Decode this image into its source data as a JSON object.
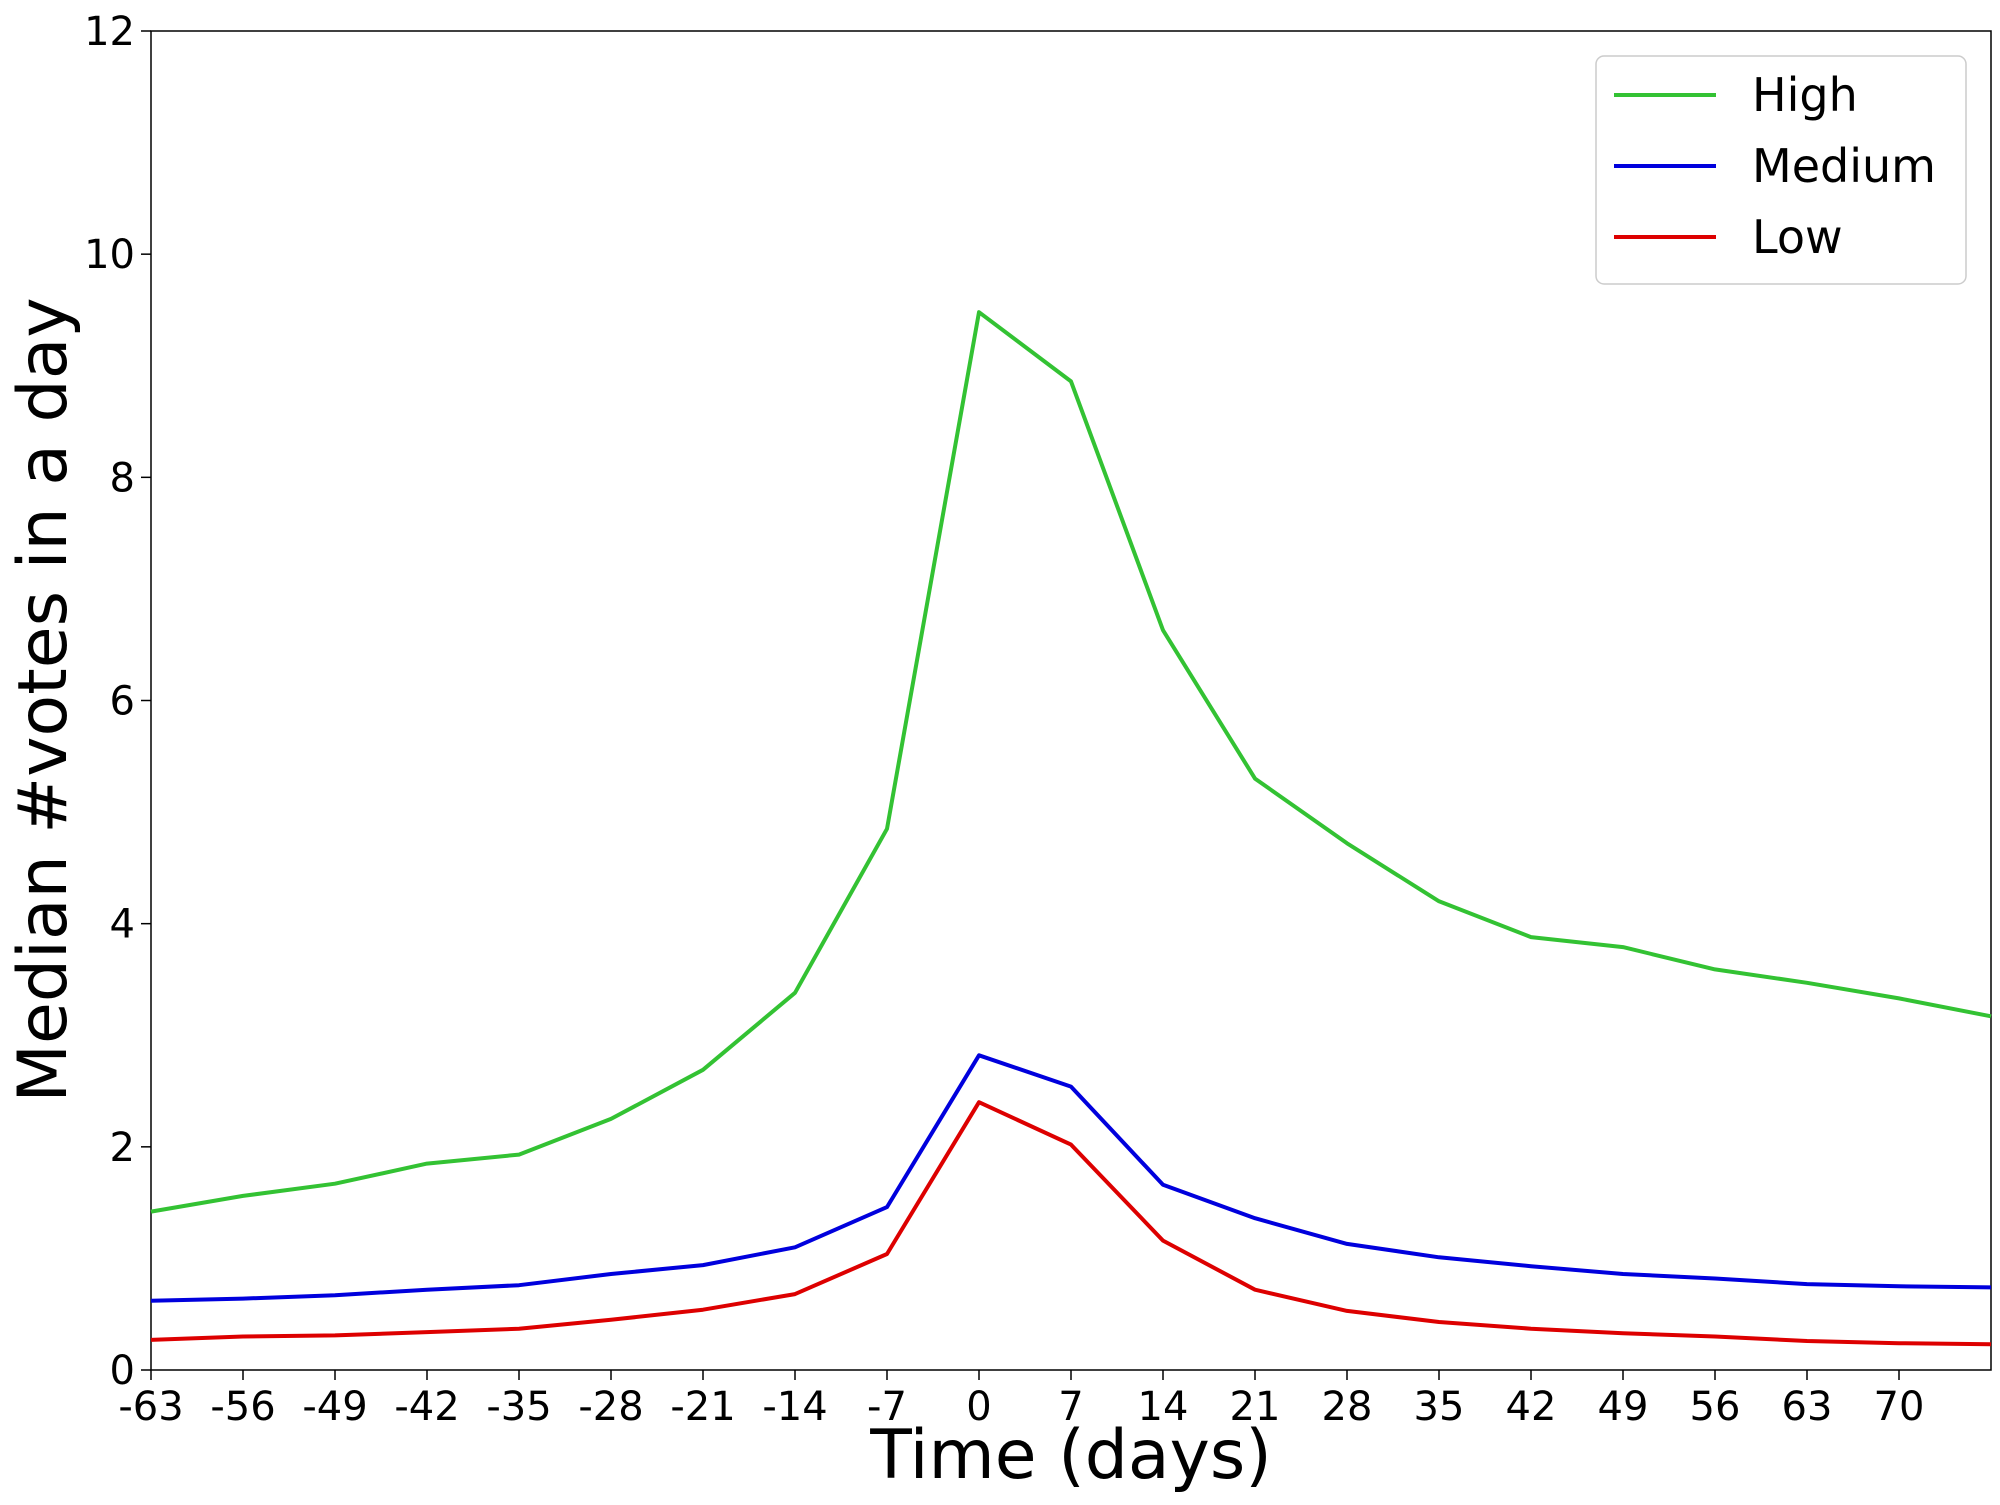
{
  "chart_data": {
    "type": "line",
    "title": "",
    "xlabel": "Time (days)",
    "ylabel": "Median #votes in a day",
    "x": [
      -63,
      -56,
      -49,
      -42,
      -35,
      -28,
      -21,
      -14,
      -7,
      0,
      7,
      14,
      21,
      28,
      35,
      42,
      49,
      56,
      63,
      70,
      77
    ],
    "xticks": [
      "-63",
      "-56",
      "-49",
      "-42",
      "-35",
      "-28",
      "-21",
      "-14",
      "-7",
      "0",
      "7",
      "14",
      "21",
      "28",
      "35",
      "42",
      "49",
      "56",
      "63",
      "70"
    ],
    "xlim": [
      -63,
      77
    ],
    "ylim": [
      0,
      12
    ],
    "yticks": [
      "0",
      "2",
      "4",
      "6",
      "8",
      "10",
      "12"
    ],
    "grid": false,
    "legend_position": "top-right",
    "series": [
      {
        "name": "High",
        "color": "#33c233",
        "values": [
          1.42,
          1.56,
          1.67,
          1.85,
          1.93,
          2.25,
          2.69,
          3.38,
          4.85,
          9.48,
          8.86,
          6.63,
          5.3,
          4.72,
          4.2,
          3.88,
          3.79,
          3.59,
          3.47,
          3.33,
          3.17
        ]
      },
      {
        "name": "Medium",
        "color": "#0000dd",
        "values": [
          0.62,
          0.64,
          0.67,
          0.72,
          0.76,
          0.86,
          0.94,
          1.1,
          1.46,
          2.82,
          2.54,
          1.66,
          1.36,
          1.13,
          1.01,
          0.93,
          0.86,
          0.82,
          0.77,
          0.75,
          0.74
        ]
      },
      {
        "name": "Low",
        "color": "#dd0000",
        "values": [
          0.27,
          0.3,
          0.31,
          0.34,
          0.37,
          0.45,
          0.54,
          0.68,
          1.04,
          2.4,
          2.02,
          1.16,
          0.72,
          0.53,
          0.43,
          0.37,
          0.33,
          0.3,
          0.26,
          0.24,
          0.23
        ]
      }
    ]
  }
}
